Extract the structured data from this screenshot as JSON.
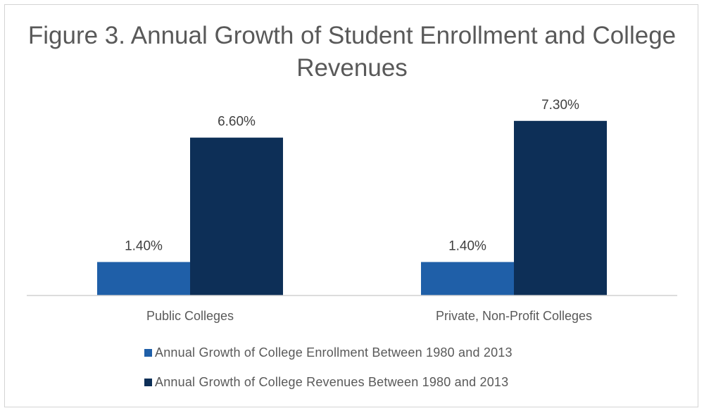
{
  "chart_data": {
    "type": "bar",
    "title": "Figure 3. Annual Growth of Student Enrollment and College Revenues",
    "categories": [
      "Public Colleges",
      "Private, Non-Profit Colleges"
    ],
    "series": [
      {
        "name": "Annual Growth of College Enrollment Between 1980 and 2013",
        "values": [
          1.4,
          1.4
        ],
        "labels": [
          "1.40%",
          "1.40%"
        ],
        "color": "#1f5fa8"
      },
      {
        "name": "Annual Growth of College Revenues Between 1980 and 2013",
        "values": [
          6.6,
          7.3
        ],
        "labels": [
          "6.60%",
          "7.30%"
        ],
        "color": "#0d2f57"
      }
    ],
    "xlabel": "",
    "ylabel": "",
    "ylim": [
      0,
      8
    ],
    "grid": false,
    "legend_position": "bottom"
  }
}
